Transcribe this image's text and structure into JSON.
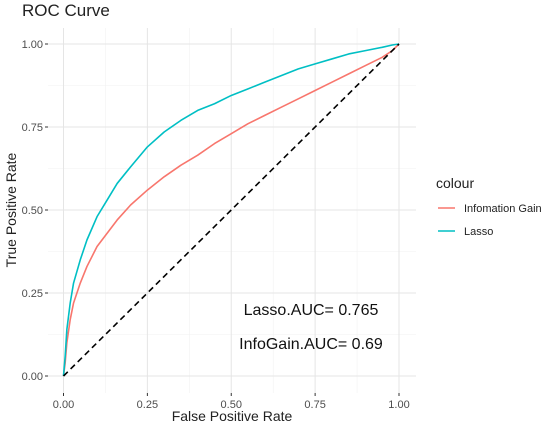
{
  "chart_data": {
    "type": "line",
    "title": "ROC Curve",
    "xlabel": "False Positive Rate",
    "ylabel": "True Positive Rate",
    "xlim": [
      0,
      1
    ],
    "ylim": [
      0,
      1
    ],
    "x_ticks": [
      "0.00",
      "0.25",
      "0.50",
      "0.75",
      "1.00"
    ],
    "y_ticks": [
      "0.00",
      "0.25",
      "0.50",
      "0.75",
      "1.00"
    ],
    "grid": true,
    "legend": {
      "title": "colour",
      "placement": "right",
      "entries": [
        "Infomation Gain",
        "Lasso"
      ]
    },
    "series": [
      {
        "name": "Lasso",
        "color": "#00BFC4",
        "x": [
          0,
          0.005,
          0.01,
          0.02,
          0.03,
          0.05,
          0.07,
          0.1,
          0.13,
          0.16,
          0.2,
          0.25,
          0.3,
          0.35,
          0.4,
          0.45,
          0.5,
          0.55,
          0.6,
          0.65,
          0.7,
          0.75,
          0.8,
          0.85,
          0.9,
          0.95,
          0.98,
          1
        ],
        "y": [
          0,
          0.06,
          0.14,
          0.22,
          0.28,
          0.35,
          0.41,
          0.48,
          0.53,
          0.58,
          0.63,
          0.69,
          0.735,
          0.77,
          0.8,
          0.82,
          0.845,
          0.865,
          0.885,
          0.905,
          0.925,
          0.94,
          0.955,
          0.97,
          0.98,
          0.99,
          0.997,
          1
        ]
      },
      {
        "name": "Infomation Gain",
        "color": "#F8766D",
        "x": [
          0,
          0.005,
          0.01,
          0.02,
          0.03,
          0.05,
          0.07,
          0.1,
          0.13,
          0.16,
          0.2,
          0.25,
          0.3,
          0.35,
          0.4,
          0.45,
          0.5,
          0.55,
          0.6,
          0.65,
          0.7,
          0.75,
          0.8,
          0.85,
          0.9,
          0.95,
          0.98,
          1
        ],
        "y": [
          0,
          0.04,
          0.1,
          0.17,
          0.22,
          0.28,
          0.33,
          0.39,
          0.43,
          0.47,
          0.515,
          0.56,
          0.6,
          0.635,
          0.665,
          0.7,
          0.73,
          0.76,
          0.785,
          0.81,
          0.835,
          0.86,
          0.885,
          0.91,
          0.935,
          0.96,
          0.98,
          1
        ]
      }
    ],
    "reference_line": {
      "x": [
        0,
        1
      ],
      "y": [
        0,
        1
      ],
      "style": "dashed",
      "color": "#000000"
    },
    "annotations": [
      {
        "text": "Lasso.AUC= 0.765",
        "x": 0.75,
        "y": 0.21
      },
      {
        "text": "InfoGain.AUC= 0.69",
        "x": 0.75,
        "y": 0.11
      }
    ]
  }
}
